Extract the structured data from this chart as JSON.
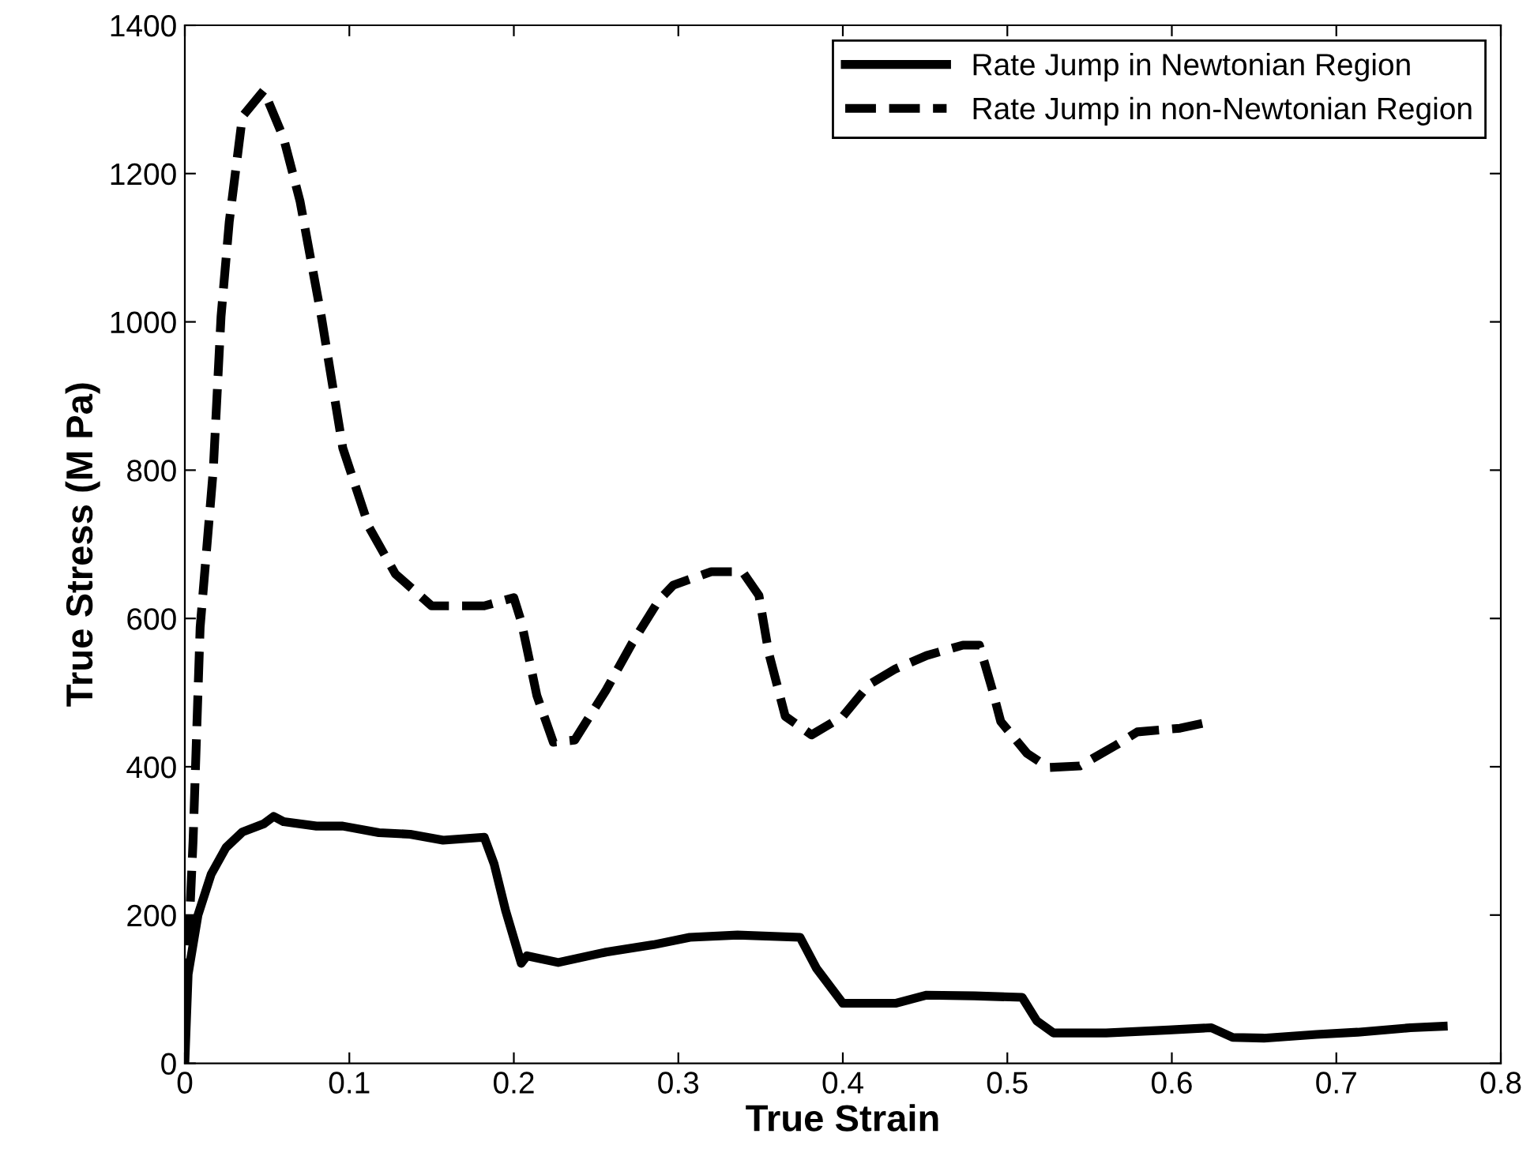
{
  "chart_data": {
    "type": "line",
    "xlabel": "True Strain",
    "ylabel": "True Stress (M Pa)",
    "xlim": [
      0,
      0.8
    ],
    "xticks": [
      0,
      0.1,
      0.2,
      0.3,
      0.4,
      0.5,
      0.6,
      0.7,
      0.8
    ],
    "ylim": [
      0,
      1400
    ],
    "yticks": [
      0,
      200,
      400,
      600,
      800,
      1000,
      1200,
      1400
    ],
    "grid": false,
    "legend": "top right",
    "marker": "none",
    "series": [
      {
        "name": "Rate Jump in Newtonian Region",
        "color": "#000000",
        "line_style": "solid",
        "x": [
          0,
          0.002,
          0.008,
          0.016,
          0.025,
          0.035,
          0.048,
          0.054,
          0.06,
          0.08,
          0.096,
          0.118,
          0.137,
          0.157,
          0.182,
          0.188,
          0.195,
          0.2045,
          0.208,
          0.227,
          0.256,
          0.285,
          0.307,
          0.336,
          0.374,
          0.384,
          0.4,
          0.432,
          0.451,
          0.48,
          0.509,
          0.518,
          0.528,
          0.56,
          0.598,
          0.624,
          0.637,
          0.656,
          0.688,
          0.713,
          0.745,
          0.765
        ],
        "values": [
          0,
          120,
          200,
          255,
          291,
          312,
          323,
          333,
          326,
          320,
          320,
          311,
          309,
          301,
          305,
          269,
          206,
          135,
          145,
          136,
          150,
          160,
          170,
          173,
          170,
          128,
          81,
          81,
          92,
          91,
          89,
          57,
          41,
          41,
          45,
          48,
          35,
          34,
          39,
          42,
          48,
          50
        ]
      },
      {
        "name": "Rate Jump in non-Newtonian Region",
        "color": "#000000",
        "line_style": "dashed",
        "x": [
          0.001,
          0.005,
          0.0093,
          0.0173,
          0.022,
          0.027,
          0.035,
          0.048,
          0.06,
          0.07,
          0.083,
          0.096,
          0.112,
          0.128,
          0.15,
          0.182,
          0.2,
          0.2045,
          0.214,
          0.224,
          0.237,
          0.256,
          0.272,
          0.288,
          0.297,
          0.32,
          0.339,
          0.349,
          0.355,
          0.365,
          0.381,
          0.4,
          0.416,
          0.432,
          0.451,
          0.473,
          0.483,
          0.491,
          0.496,
          0.512,
          0.525,
          0.544,
          0.566,
          0.579,
          0.605,
          0.624
        ],
        "values": [
          100,
          300,
          588,
          801,
          1007,
          1135,
          1277,
          1312,
          1248,
          1163,
          1007,
          830,
          723,
          660,
          617,
          617,
          628,
          596,
          496,
          433,
          436,
          503,
          567,
          624,
          645,
          663,
          663,
          631,
          553,
          468,
          443,
          468,
          511,
          532,
          550,
          564,
          564,
          503,
          461,
          418,
          399,
          401,
          429,
          447,
          452,
          461
        ]
      }
    ]
  }
}
